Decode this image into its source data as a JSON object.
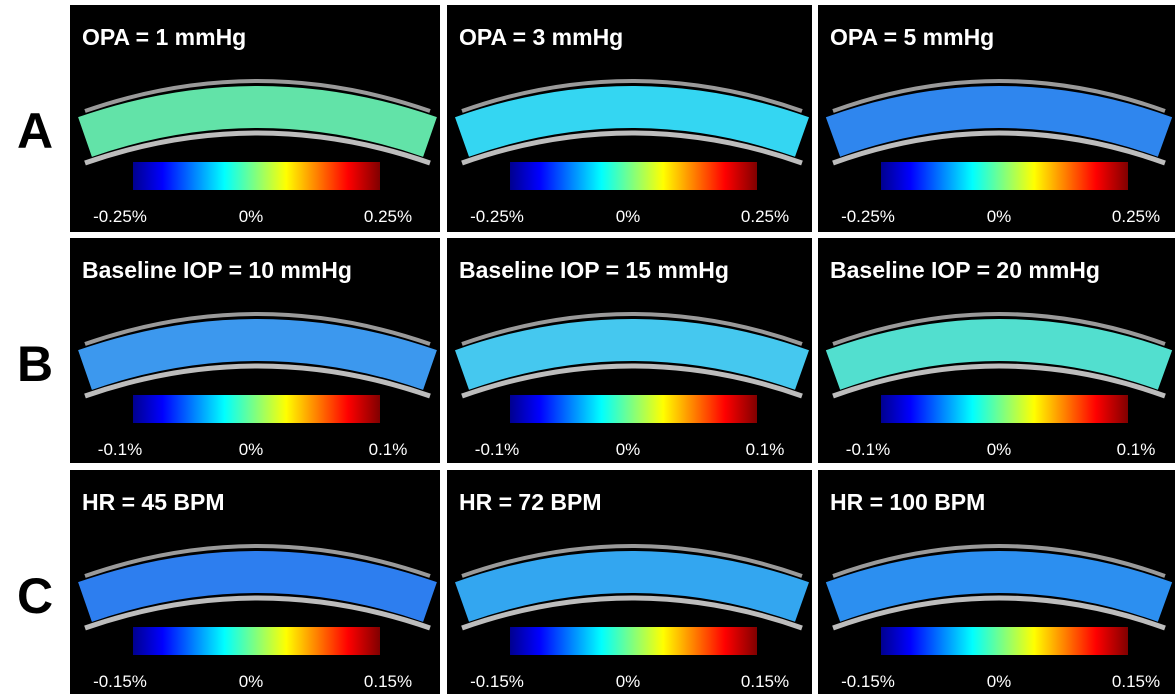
{
  "rows": [
    {
      "label": "A",
      "panels": [
        {
          "title": "OPA = 1 mmHg",
          "colorbar_labels": [
            "-0.25%",
            "0%",
            "0.25%"
          ]
        },
        {
          "title": "OPA = 3 mmHg",
          "colorbar_labels": [
            "-0.25%",
            "0%",
            "0.25%"
          ]
        },
        {
          "title": "OPA = 5 mmHg",
          "colorbar_labels": [
            "-0.25%",
            "0%",
            "0.25%"
          ]
        }
      ]
    },
    {
      "label": "B",
      "panels": [
        {
          "title": "Baseline IOP = 10 mmHg",
          "colorbar_labels": [
            "-0.1%",
            "0%",
            "0.1%"
          ]
        },
        {
          "title": "Baseline IOP = 15 mmHg",
          "colorbar_labels": [
            "-0.1%",
            "0%",
            "0.1%"
          ]
        },
        {
          "title": "Baseline IOP = 20 mmHg",
          "colorbar_labels": [
            "-0.1%",
            "0%",
            "0.1%"
          ]
        }
      ]
    },
    {
      "label": "C",
      "panels": [
        {
          "title": "HR = 45 BPM",
          "colorbar_labels": [
            "-0.15%",
            "0%",
            "0.15%"
          ]
        },
        {
          "title": "HR = 72 BPM",
          "colorbar_labels": [
            "-0.15%",
            "0%",
            "0.15%"
          ]
        },
        {
          "title": "HR = 100 BPM",
          "colorbar_labels": [
            "-0.15%",
            "0%",
            "0.15%"
          ]
        }
      ]
    }
  ]
}
